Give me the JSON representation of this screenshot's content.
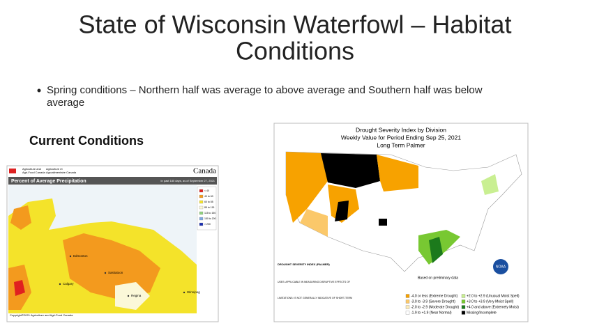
{
  "slide": {
    "title": [
      "State of Wisconsin Waterfowl – Habitat",
      "Conditions"
    ],
    "bullet": [
      "Spring conditions – Northern half was average to above average and Southern half was below",
      "average"
    ],
    "subheading": "Current Conditions",
    "canada_map": {
      "agency": [
        "Agriculture and",
        "Agri-Food Canada"
      ],
      "agency_fr": [
        "Agriculture et",
        "Agroalimentaire Canada"
      ],
      "wordmark": "Canada",
      "header": "Percent of Average Precipitation",
      "period": "In past 180 days, as of September 27, 2021",
      "legend": [
        {
          "label": "< 40",
          "color": "#e02020"
        },
        {
          "label": "40 to 60",
          "color": "#f39a1e"
        },
        {
          "label": "60 to 85",
          "color": "#f4e32a"
        },
        {
          "label": "85 to 115",
          "color": "#fbf8d8"
        },
        {
          "label": "115 to 150",
          "color": "#8fd17e"
        },
        {
          "label": "150 to 200",
          "color": "#7fa8e0"
        },
        {
          "label": "> 200",
          "color": "#1a2fb0"
        }
      ],
      "cities": [
        "Edmonton",
        "Calgary",
        "Saskatoon",
        "Regina",
        "Winnipeg"
      ],
      "footer": "Copyright©2021 Agriculture and Agri-Food Canada"
    },
    "drought_map": {
      "title": [
        "Drought Severity Index by Division",
        "Weekly Value for Period Ending Sep 25, 2021",
        "Long Term Palmer"
      ],
      "note": "Based on preliminary data",
      "info": [
        "DROUGHT SEVERITY INDEX (PALMER)",
        "USES: APPLICABLE IN MEASURING DISRUPTIVE EFFECTS OF",
        "LIMITATIONS: IS NOT GENERALLY INDICATIVE OF SHORT-TERM"
      ],
      "agency": "NOAA",
      "legend": [
        {
          "label": "-4.0 or less (Extreme Drought)",
          "color": "#f7a200"
        },
        {
          "label": "-3.0 to -3.9 (Severe Drought)",
          "color": "#fbc86a"
        },
        {
          "label": "-2.0 to -2.9 (Moderate Drought)",
          "color": "#fdebb8"
        },
        {
          "label": "-1.9 to +1.9 (Near Normal)",
          "color": "#ffffff"
        },
        {
          "label": "+2.0 to +2.9 (Unusual Moist Spell)",
          "color": "#c9ef92"
        },
        {
          "label": "+3.0 to +3.9 (Very Moist Spell)",
          "color": "#78c832"
        },
        {
          "label": "+4.0 and above (Extremely Moist)",
          "color": "#1c7a1c"
        },
        {
          "label": "Missing/Incomplete",
          "color": "#000000"
        }
      ]
    }
  }
}
